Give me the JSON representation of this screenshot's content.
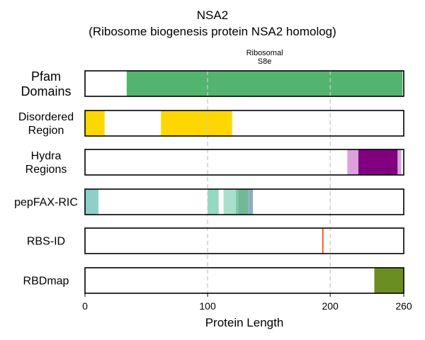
{
  "chart_data": {
    "type": "bar",
    "title": "NSA2",
    "subtitle": "(Ribosome biogenesis protein NSA2 homolog)",
    "xlabel": "Protein Length",
    "xlim": [
      0,
      260
    ],
    "xticks": [
      0,
      100,
      200,
      260
    ],
    "grid_lines_x": [
      100,
      200
    ],
    "tracks": [
      {
        "label_lines": [
          "Pfam",
          "Domains"
        ],
        "segments": [
          {
            "start": 34,
            "end": 259,
            "color": "#52b46f",
            "label_lines": [
              "Ribosomal",
              "S8e"
            ]
          }
        ]
      },
      {
        "label_lines": [
          "Disordered",
          "Region"
        ],
        "segments": [
          {
            "start": 0,
            "end": 16,
            "color": "#ffd700"
          },
          {
            "start": 62,
            "end": 120,
            "color": "#ffd700"
          }
        ]
      },
      {
        "label_lines": [
          "Hydra",
          "Regions"
        ],
        "segments": [
          {
            "start": 214,
            "end": 223,
            "color": "#dda0dd"
          },
          {
            "start": 223,
            "end": 255,
            "color": "#800080"
          },
          {
            "start": 255,
            "end": 258,
            "color": "#dda0dd"
          }
        ]
      },
      {
        "label_lines": [
          "pepFAX-RIC"
        ],
        "segments": [
          {
            "start": 0,
            "end": 11,
            "color": "#8ecfc9"
          },
          {
            "start": 100,
            "end": 109,
            "color": "#94d9c1"
          },
          {
            "start": 113,
            "end": 123,
            "color": "#a8e0cc"
          },
          {
            "start": 123,
            "end": 125,
            "color": "#7fc9b0"
          },
          {
            "start": 125,
            "end": 133,
            "color": "#6fba95"
          },
          {
            "start": 133,
            "end": 137,
            "color": "#8faec0"
          }
        ]
      },
      {
        "label_lines": [
          "RBS-ID"
        ],
        "segments": [
          {
            "start": 193.5,
            "end": 194.5,
            "color": "#ff4500"
          }
        ]
      },
      {
        "label_lines": [
          "RBDmap"
        ],
        "segments": [
          {
            "start": 236,
            "end": 260,
            "color": "#6b8e23"
          }
        ]
      }
    ]
  }
}
